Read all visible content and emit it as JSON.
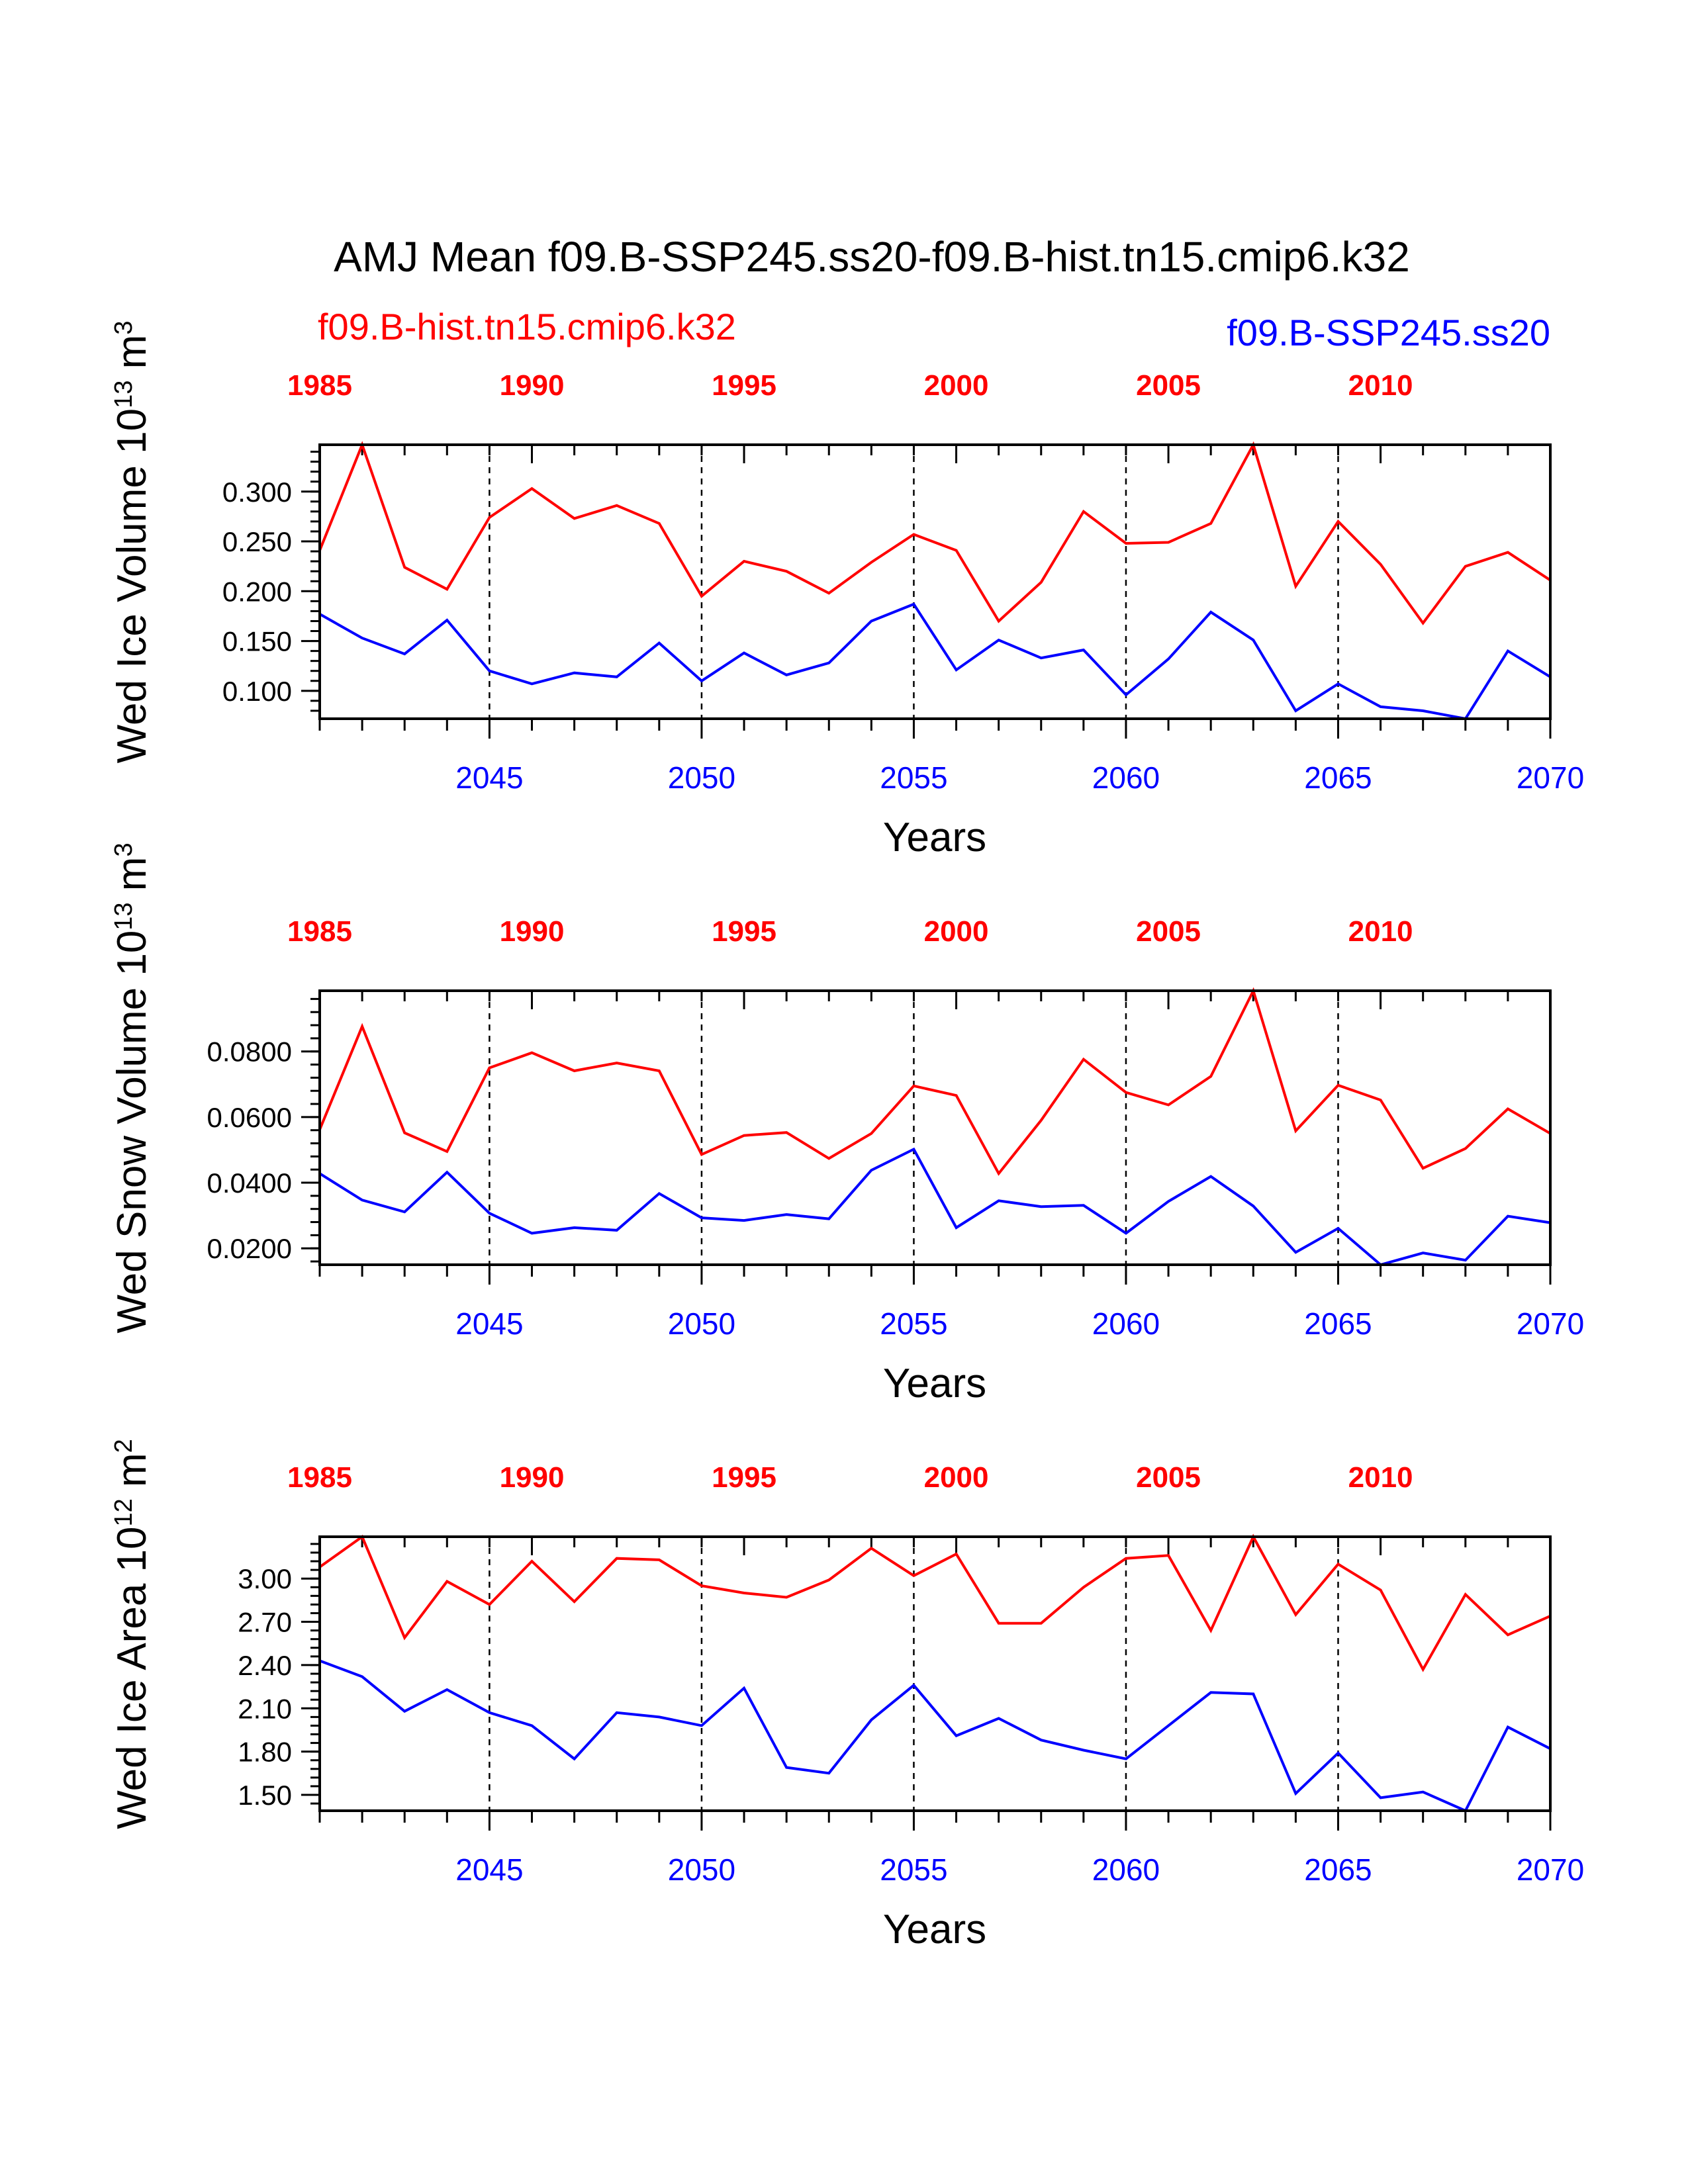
{
  "title": "AMJ Mean f09.B-SSP245.ss20-f09.B-hist.tn15.cmip6.k32",
  "legend": {
    "hist": "f09.B-hist.tn15.cmip6.k32",
    "ssp": "f09.B-SSP245.ss20"
  },
  "colors": {
    "hist": "#ff0000",
    "ssp": "#0000ff"
  },
  "chart_data": [
    {
      "type": "line",
      "ylabel": "Wed Ice Volume 10",
      "ylabel_exp": "13",
      "ylabel_unit": " m",
      "ylabel_unit_exp": "3",
      "xlabel": "Years",
      "top_ticks": [
        "1985",
        "1990",
        "1995",
        "2000",
        "2005",
        "2010"
      ],
      "bottom_ticks": [
        "2045",
        "2050",
        "2055",
        "2060",
        "2065",
        "2070"
      ],
      "ytick_labels": [
        "0.300",
        "0.250",
        "0.200",
        "0.150",
        "0.100"
      ],
      "yticks": [
        0.3,
        0.25,
        0.2,
        0.15,
        0.1
      ],
      "ylim": [
        0.072,
        0.347
      ],
      "x_hist": [
        1985,
        1986,
        1987,
        1988,
        1989,
        1990,
        1991,
        1992,
        1993,
        1994,
        1995,
        1996,
        1997,
        1998,
        1999,
        2000,
        2001,
        2002,
        2003,
        2004,
        2005,
        2006,
        2007,
        2008,
        2009,
        2010,
        2011,
        2012,
        2013,
        2014
      ],
      "x_ssp": [
        2041,
        2042,
        2043,
        2044,
        2045,
        2046,
        2047,
        2048,
        2049,
        2050,
        2051,
        2052,
        2053,
        2054,
        2055,
        2056,
        2057,
        2058,
        2059,
        2060,
        2061,
        2062,
        2063,
        2064,
        2065,
        2066,
        2067,
        2068,
        2069,
        2070
      ],
      "series": [
        {
          "name": "f09.B-hist.tn15.cmip6.k32",
          "values": [
            0.241,
            0.347,
            0.224,
            0.202,
            0.274,
            0.303,
            0.273,
            0.286,
            0.268,
            0.195,
            0.23,
            0.22,
            0.198,
            0.229,
            0.257,
            0.241,
            0.17,
            0.209,
            0.28,
            0.248,
            0.249,
            0.268,
            0.347,
            0.205,
            0.27,
            0.227,
            0.168,
            0.225,
            0.239,
            0.211
          ]
        },
        {
          "name": "f09.B-SSP245.ss20",
          "values": [
            0.177,
            0.153,
            0.137,
            0.171,
            0.12,
            0.107,
            0.118,
            0.114,
            0.148,
            0.11,
            0.138,
            0.116,
            0.128,
            0.17,
            0.187,
            0.121,
            0.151,
            0.133,
            0.141,
            0.096,
            0.132,
            0.179,
            0.151,
            0.08,
            0.107,
            0.084,
            0.08,
            0.072,
            0.14,
            0.114
          ]
        }
      ]
    },
    {
      "type": "line",
      "ylabel": "Wed Snow Volume 10",
      "ylabel_exp": "13",
      "ylabel_unit": " m",
      "ylabel_unit_exp": "3",
      "xlabel": "Years",
      "top_ticks": [
        "1985",
        "1990",
        "1995",
        "2000",
        "2005",
        "2010"
      ],
      "bottom_ticks": [
        "2045",
        "2050",
        "2055",
        "2060",
        "2065",
        "2070"
      ],
      "ytick_labels": [
        "0.0800",
        "0.0600",
        "0.0400",
        "0.0200"
      ],
      "yticks": [
        0.08,
        0.06,
        0.04,
        0.02
      ],
      "ylim": [
        0.015,
        0.0985
      ],
      "x_hist": [
        1985,
        1986,
        1987,
        1988,
        1989,
        1990,
        1991,
        1992,
        1993,
        1994,
        1995,
        1996,
        1997,
        1998,
        1999,
        2000,
        2001,
        2002,
        2003,
        2004,
        2005,
        2006,
        2007,
        2008,
        2009,
        2010,
        2011,
        2012,
        2013,
        2014
      ],
      "x_ssp": [
        2041,
        2042,
        2043,
        2044,
        2045,
        2046,
        2047,
        2048,
        2049,
        2050,
        2051,
        2052,
        2053,
        2054,
        2055,
        2056,
        2057,
        2058,
        2059,
        2060,
        2061,
        2062,
        2063,
        2064,
        2065,
        2066,
        2067,
        2068,
        2069,
        2070
      ],
      "series": [
        {
          "name": "f09.B-hist.tn15.cmip6.k32",
          "values": [
            0.0562,
            0.0876,
            0.0552,
            0.0495,
            0.075,
            0.0796,
            0.0741,
            0.0765,
            0.0741,
            0.0486,
            0.0544,
            0.0553,
            0.0474,
            0.055,
            0.0695,
            0.0666,
            0.0428,
            0.059,
            0.0776,
            0.0675,
            0.0637,
            0.0724,
            0.0985,
            0.0558,
            0.0697,
            0.0652,
            0.0444,
            0.0504,
            0.0625,
            0.055
          ]
        },
        {
          "name": "f09.B-SSP245.ss20",
          "values": [
            0.0428,
            0.0347,
            0.0311,
            0.0432,
            0.0307,
            0.0246,
            0.0263,
            0.0255,
            0.0367,
            0.0293,
            0.0285,
            0.0303,
            0.029,
            0.0438,
            0.0502,
            0.0263,
            0.0345,
            0.0327,
            0.0331,
            0.0246,
            0.0343,
            0.0419,
            0.0329,
            0.0188,
            0.0261,
            0.015,
            0.0186,
            0.0164,
            0.0298,
            0.0278
          ]
        }
      ]
    },
    {
      "type": "line",
      "ylabel": "Wed Ice Area 10",
      "ylabel_exp": "12",
      "ylabel_unit": " m",
      "ylabel_unit_exp": "2",
      "xlabel": "Years",
      "top_ticks": [
        "1985",
        "1990",
        "1995",
        "2000",
        "2005",
        "2010"
      ],
      "bottom_ticks": [
        "2045",
        "2050",
        "2055",
        "2060",
        "2065",
        "2070"
      ],
      "ytick_labels": [
        "3.00",
        "2.70",
        "2.40",
        "2.10",
        "1.80",
        "1.50"
      ],
      "yticks": [
        3.0,
        2.7,
        2.4,
        2.1,
        1.8,
        1.5
      ],
      "ylim": [
        1.39,
        3.29
      ],
      "x_hist": [
        1985,
        1986,
        1987,
        1988,
        1989,
        1990,
        1991,
        1992,
        1993,
        1994,
        1995,
        1996,
        1997,
        1998,
        1999,
        2000,
        2001,
        2002,
        2003,
        2004,
        2005,
        2006,
        2007,
        2008,
        2009,
        2010,
        2011,
        2012,
        2013,
        2014
      ],
      "x_ssp": [
        2041,
        2042,
        2043,
        2044,
        2045,
        2046,
        2047,
        2048,
        2049,
        2050,
        2051,
        2052,
        2053,
        2054,
        2055,
        2056,
        2057,
        2058,
        2059,
        2060,
        2061,
        2062,
        2063,
        2064,
        2065,
        2066,
        2067,
        2068,
        2069,
        2070
      ],
      "series": [
        {
          "name": "f09.B-hist.tn15.cmip6.k32",
          "values": [
            3.08,
            3.29,
            2.59,
            2.98,
            2.82,
            3.12,
            2.84,
            3.14,
            3.13,
            2.95,
            2.9,
            2.87,
            2.99,
            3.21,
            3.02,
            3.17,
            2.69,
            2.69,
            2.94,
            3.14,
            3.16,
            2.64,
            3.29,
            2.75,
            3.1,
            2.92,
            2.37,
            2.89,
            2.61,
            2.74
          ]
        },
        {
          "name": "f09.B-SSP245.ss20",
          "values": [
            2.43,
            2.32,
            2.08,
            2.23,
            2.07,
            1.98,
            1.75,
            2.07,
            2.04,
            1.98,
            2.24,
            1.69,
            1.65,
            2.02,
            2.26,
            1.91,
            2.03,
            1.88,
            1.81,
            1.75,
            1.98,
            2.21,
            2.2,
            1.51,
            1.79,
            1.48,
            1.52,
            1.39,
            1.97,
            1.82
          ]
        }
      ]
    }
  ]
}
